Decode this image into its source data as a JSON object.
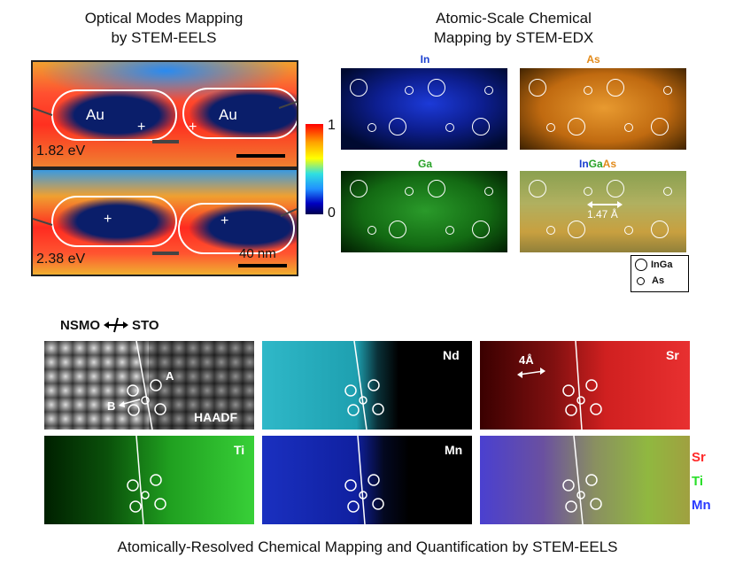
{
  "eels_title_line1": "Optical Modes Mapping",
  "eels_title_line2": "by STEM-EELS",
  "edx_title_line1": "Atomic-Scale Chemical",
  "edx_title_line2": "Mapping by STEM-EDX",
  "eels_panels": [
    {
      "energy": "1.82 eV",
      "particle_left": "Au",
      "particle_right": "Au"
    },
    {
      "energy": "2.38 eV",
      "scale": "40 nm"
    }
  ],
  "colorbar": {
    "max": "1",
    "min": "0"
  },
  "edx_panels": [
    {
      "label": "In",
      "color": "#1a3fd0"
    },
    {
      "label": "As",
      "color": "#e28a1a"
    },
    {
      "label": "Ga",
      "color": "#2aa32a"
    },
    {
      "label_parts": [
        "In",
        "Ga",
        "As"
      ],
      "colors": [
        "#1a3fd0",
        "#2aa32a",
        "#e28a1a"
      ],
      "spacing": "1.47 Å"
    }
  ],
  "edx_key": {
    "large": "InGa",
    "small": "As"
  },
  "eels_bottom": {
    "interface_left": "NSMO",
    "interface_right": "STO",
    "panels": [
      {
        "label": "HAADF",
        "site_a": "A",
        "site_b": "B"
      },
      {
        "label": "Nd"
      },
      {
        "label": "Sr",
        "spacing": "4Å"
      },
      {
        "label": "Ti"
      },
      {
        "label": "Mn"
      },
      {
        "legend": [
          "Sr",
          "Ti",
          "Mn"
        ],
        "legend_colors": [
          "#ff2a2a",
          "#2adf2a",
          "#2a3aff"
        ]
      }
    ]
  },
  "caption": "Atomically-Resolved Chemical Mapping and Quantification by STEM-EELS"
}
